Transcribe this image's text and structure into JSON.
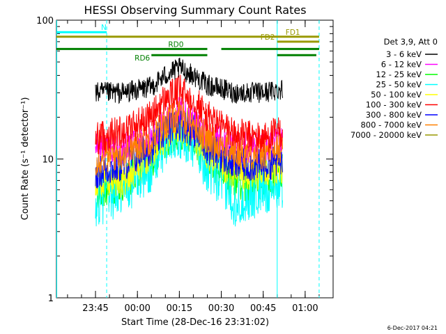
{
  "footer_timestamp": "6-Dec-2017 04:21",
  "chart_data": {
    "type": "line",
    "title": "HESSI Observing Summary Count Rates",
    "xlabel": "Start Time (28-Dec-16 23:31:02)",
    "ylabel": "Count Rate (s⁻¹ detector⁻¹)",
    "y_scale": "log",
    "ylim": [
      1,
      100
    ],
    "xlim": [
      "23:31:02",
      "01:10:00"
    ],
    "x_ticks": [
      "23:45",
      "00:00",
      "00:15",
      "00:30",
      "00:45",
      "01:00"
    ],
    "y_ticks": [
      "1",
      "10",
      "100"
    ],
    "grid": false,
    "legend_position": "right",
    "legend_header": "Det 3,9, Att 0",
    "data_start": "23:45",
    "data_end": "00:52",
    "series": [
      {
        "name": "3 - 6 keV",
        "color": "#000000",
        "x": [
          "23:45",
          "23:55",
          "00:05",
          "00:10",
          "00:15",
          "00:20",
          "00:25",
          "00:35",
          "00:45",
          "00:52"
        ],
        "values": [
          30,
          30,
          33,
          40,
          45,
          40,
          34,
          30,
          30,
          32
        ]
      },
      {
        "name": "6 - 12 keV",
        "color": "#ff00ff",
        "x": [
          "23:45",
          "23:55",
          "00:05",
          "00:10",
          "00:15",
          "00:20",
          "00:25",
          "00:35",
          "00:45",
          "00:52"
        ],
        "values": [
          12,
          12,
          14,
          18,
          22,
          18,
          15,
          12,
          12,
          13
        ]
      },
      {
        "name": "12 - 25 keV",
        "color": "#00ff00",
        "x": [
          "23:45",
          "23:55",
          "00:05",
          "00:10",
          "00:15",
          "00:20",
          "00:25",
          "00:35",
          "00:45",
          "00:52"
        ],
        "values": [
          6,
          7,
          10,
          14,
          17,
          14,
          10,
          7,
          7,
          8
        ]
      },
      {
        "name": "25 - 50 keV",
        "color": "#00ffff",
        "x": [
          "23:45",
          "23:55",
          "00:05",
          "00:10",
          "00:15",
          "00:20",
          "00:25",
          "00:35",
          "00:45",
          "00:52"
        ],
        "values": [
          5,
          6,
          9,
          13,
          16,
          13,
          9,
          5,
          6,
          7
        ]
      },
      {
        "name": "50 - 100 keV",
        "color": "#ffff00",
        "x": [
          "23:45",
          "23:55",
          "00:05",
          "00:10",
          "00:15",
          "00:20",
          "00:25",
          "00:35",
          "00:45",
          "00:52"
        ],
        "values": [
          7,
          7,
          11,
          15,
          18,
          15,
          11,
          8,
          8,
          9
        ]
      },
      {
        "name": "100 - 300 keV",
        "color": "#ff0000",
        "x": [
          "23:45",
          "23:55",
          "00:05",
          "00:10",
          "00:15",
          "00:20",
          "00:25",
          "00:35",
          "00:45",
          "00:52"
        ],
        "values": [
          14,
          16,
          20,
          27,
          31,
          27,
          20,
          15,
          14,
          16
        ]
      },
      {
        "name": "300 - 800 keV",
        "color": "#0000ff",
        "x": [
          "23:45",
          "23:55",
          "00:05",
          "00:10",
          "00:15",
          "00:20",
          "00:25",
          "00:35",
          "00:45",
          "00:52"
        ],
        "values": [
          8,
          9,
          12,
          16,
          18,
          16,
          12,
          9,
          9,
          10
        ]
      },
      {
        "name": "800 - 7000 keV",
        "color": "#ff8000",
        "x": [
          "23:45",
          "23:55",
          "00:05",
          "00:10",
          "00:15",
          "00:20",
          "00:25",
          "00:35",
          "00:45",
          "00:52"
        ],
        "values": [
          10,
          11,
          14,
          18,
          21,
          18,
          14,
          11,
          11,
          12
        ]
      },
      {
        "name": "7000 - 20000 keV",
        "color": "#999900",
        "x": [],
        "values": []
      }
    ],
    "annotations": [
      {
        "label": "N",
        "color": "#00ffff",
        "start": "23:31:02",
        "end": "23:49",
        "level": 82
      },
      {
        "label": "FD1",
        "color": "#999900",
        "start": "23:31:02",
        "end": "01:05",
        "level": 76
      },
      {
        "label": "FD2",
        "color": "#999900",
        "start": "00:50",
        "end": "01:05",
        "level": 70
      },
      {
        "label": "RD0",
        "color": "#008000",
        "start": "23:31:02",
        "end": "00:25",
        "level": 62
      },
      {
        "label": "RD6",
        "color": "#008000",
        "start": "00:05",
        "end": "00:25",
        "level": 56
      }
    ]
  }
}
